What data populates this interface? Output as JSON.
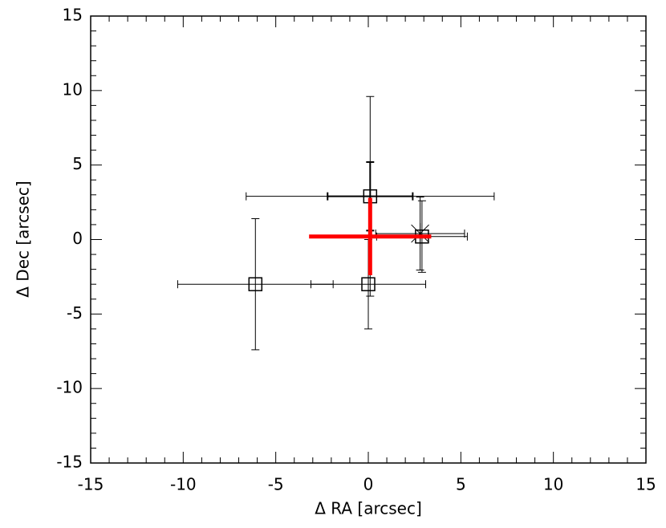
{
  "chart_data": {
    "type": "scatter",
    "xlabel": "Δ RA [arcsec]",
    "ylabel": "Δ Dec [arcsec]",
    "xlim": [
      -15,
      15
    ],
    "xticks": [
      -15,
      -10,
      -5,
      0,
      5,
      10,
      15
    ],
    "ylim": [
      -15,
      15
    ],
    "yticks": [
      -15,
      -10,
      -5,
      0,
      5,
      10,
      15
    ],
    "minor_ticks_per_major": 5,
    "series": [
      {
        "color": "#000000",
        "marker": "square",
        "line_width": 1,
        "x": [
          -6.1,
          0,
          0.1,
          2.9
        ],
        "y": [
          -3.0,
          -3.0,
          2.9,
          0.2
        ],
        "xerr": [
          4.2,
          3.1,
          6.7,
          2.45
        ],
        "yerr": [
          4.4,
          3.0,
          6.7,
          2.4
        ]
      },
      {
        "color": "#000000",
        "marker": "none",
        "line_width": 2,
        "x": [
          0.1
        ],
        "y": [
          2.9
        ],
        "xerr": [
          2.3
        ],
        "yerr": [
          2.3
        ]
      },
      {
        "color": "#000000",
        "marker": "asterisk",
        "line_width": 1,
        "x": [
          2.8
        ],
        "y": [
          0.4
        ],
        "xerr": [
          2.4
        ],
        "yerr": [
          2.45
        ]
      },
      {
        "color": "#ff0000",
        "marker": "none",
        "line_width": 5,
        "x": [
          0.1
        ],
        "y": [
          0.2
        ],
        "xerr": [
          3.3
        ],
        "yerr": [
          2.6
        ]
      }
    ]
  }
}
